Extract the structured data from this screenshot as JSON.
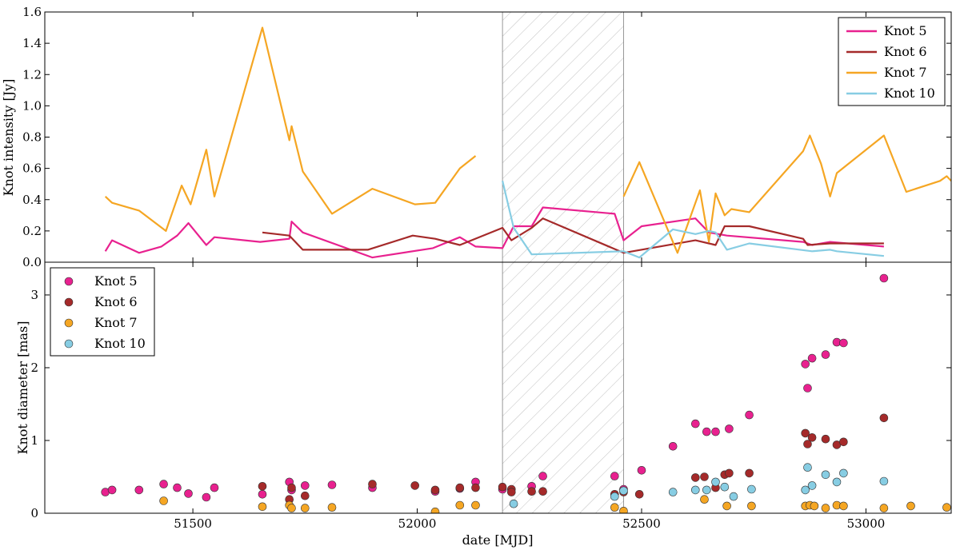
{
  "chart_data": [
    {
      "type": "line",
      "panel": "top",
      "title": "",
      "xlabel": "",
      "ylabel": "Knot intensity [Jy]",
      "xlim": [
        51170,
        53190
      ],
      "ylim": [
        0.0,
        1.6
      ],
      "yticks": [
        "0.0",
        "0.2",
        "0.4",
        "0.6",
        "0.8",
        "1.0",
        "1.2",
        "1.4",
        "1.6"
      ],
      "ytick_values": [
        0.0,
        0.2,
        0.4,
        0.6,
        0.8,
        1.0,
        1.2,
        1.4,
        1.6
      ],
      "legend_position": "top-right",
      "series": [
        {
          "name": "Knot 5",
          "color": "#e8218f",
          "segments": [
            [
              [
                51305,
                0.07
              ],
              [
                51320,
                0.14
              ],
              [
                51380,
                0.06
              ],
              [
                51430,
                0.1
              ],
              [
                51465,
                0.17
              ],
              [
                51490,
                0.25
              ],
              [
                51530,
                0.11
              ],
              [
                51548,
                0.16
              ],
              [
                51650,
                0.13
              ],
              [
                51715,
                0.15
              ],
              [
                51720,
                0.26
              ],
              [
                51745,
                0.19
              ],
              [
                51900,
                0.03
              ],
              [
                52035,
                0.09
              ],
              [
                52095,
                0.16
              ],
              [
                52130,
                0.1
              ],
              [
                52190,
                0.09
              ],
              [
                52215,
                0.23
              ],
              [
                52255,
                0.23
              ],
              [
                52280,
                0.35
              ],
              [
                52440,
                0.31
              ],
              [
                52460,
                0.14
              ],
              [
                52500,
                0.23
              ],
              [
                52620,
                0.28
              ],
              [
                52650,
                0.19
              ],
              [
                52690,
                0.17
              ],
              [
                52860,
                0.13
              ],
              [
                52880,
                0.11
              ],
              [
                52920,
                0.13
              ],
              [
                53040,
                0.1
              ]
            ]
          ]
        },
        {
          "name": "Knot 6",
          "color": "#a52a2a",
          "segments": [
            [
              [
                51655,
                0.19
              ],
              [
                51715,
                0.17
              ],
              [
                51745,
                0.08
              ],
              [
                51890,
                0.08
              ],
              [
                51990,
                0.17
              ],
              [
                52040,
                0.15
              ],
              [
                52095,
                0.11
              ],
              [
                52190,
                0.22
              ],
              [
                52210,
                0.14
              ],
              [
                52255,
                0.22
              ],
              [
                52280,
                0.28
              ],
              [
                52460,
                0.06
              ],
              [
                52620,
                0.14
              ],
              [
                52650,
                0.12
              ],
              [
                52665,
                0.11
              ],
              [
                52685,
                0.23
              ],
              [
                52740,
                0.23
              ],
              [
                52860,
                0.15
              ],
              [
                52870,
                0.11
              ],
              [
                52920,
                0.12
              ],
              [
                53040,
                0.12
              ]
            ]
          ]
        },
        {
          "name": "Knot 7",
          "color": "#f5a623",
          "segments": [
            [
              [
                51305,
                0.42
              ],
              [
                51320,
                0.38
              ],
              [
                51380,
                0.33
              ],
              [
                51440,
                0.2
              ],
              [
                51475,
                0.49
              ],
              [
                51495,
                0.37
              ],
              [
                51530,
                0.72
              ],
              [
                51548,
                0.42
              ],
              [
                51655,
                1.5
              ],
              [
                51715,
                0.78
              ],
              [
                51720,
                0.87
              ],
              [
                51745,
                0.58
              ],
              [
                51810,
                0.31
              ],
              [
                51900,
                0.47
              ],
              [
                51995,
                0.37
              ],
              [
                52040,
                0.38
              ],
              [
                52095,
                0.6
              ],
              [
                52130,
                0.68
              ]
            ],
            [
              [
                52460,
                0.42
              ],
              [
                52495,
                0.64
              ],
              [
                52580,
                0.06
              ],
              [
                52630,
                0.46
              ],
              [
                52650,
                0.13
              ],
              [
                52665,
                0.44
              ],
              [
                52685,
                0.3
              ],
              [
                52700,
                0.34
              ],
              [
                52740,
                0.32
              ],
              [
                52860,
                0.71
              ],
              [
                52875,
                0.81
              ],
              [
                52900,
                0.63
              ],
              [
                52920,
                0.42
              ],
              [
                52935,
                0.57
              ],
              [
                53040,
                0.81
              ],
              [
                53090,
                0.45
              ],
              [
                53165,
                0.52
              ],
              [
                53180,
                0.55
              ],
              [
                53190,
                0.52
              ]
            ]
          ]
        },
        {
          "name": "Knot 10",
          "color": "#87cde3",
          "segments": [
            [
              [
                52190,
                0.52
              ],
              [
                52215,
                0.22
              ],
              [
                52255,
                0.05
              ],
              [
                52460,
                0.07
              ],
              [
                52495,
                0.03
              ],
              [
                52570,
                0.21
              ],
              [
                52620,
                0.18
              ],
              [
                52650,
                0.2
              ],
              [
                52665,
                0.19
              ],
              [
                52690,
                0.08
              ],
              [
                52740,
                0.12
              ],
              [
                52880,
                0.07
              ],
              [
                52920,
                0.08
              ],
              [
                52935,
                0.07
              ],
              [
                53040,
                0.04
              ]
            ]
          ]
        }
      ]
    },
    {
      "type": "scatter",
      "panel": "bottom",
      "title": "",
      "xlabel": "date [MJD]",
      "ylabel": "Knot diameter [mas]",
      "xlim": [
        51170,
        53190
      ],
      "ylim": [
        0,
        3.45
      ],
      "yticks": [
        "0",
        "1",
        "2",
        "3"
      ],
      "ytick_values": [
        0,
        1,
        2,
        3
      ],
      "xticks": [
        "51500",
        "52000",
        "52500",
        "53000"
      ],
      "xtick_values": [
        51500,
        52000,
        52500,
        53000
      ],
      "legend_position": "top-left",
      "series": [
        {
          "name": "Knot 5",
          "color": "#e8218f",
          "points": [
            [
              51305,
              0.29
            ],
            [
              51320,
              0.32
            ],
            [
              51380,
              0.32
            ],
            [
              51435,
              0.4
            ],
            [
              51465,
              0.35
            ],
            [
              51490,
              0.27
            ],
            [
              51530,
              0.22
            ],
            [
              51548,
              0.35
            ],
            [
              51655,
              0.26
            ],
            [
              51715,
              0.43
            ],
            [
              51720,
              0.32
            ],
            [
              51750,
              0.38
            ],
            [
              51810,
              0.39
            ],
            [
              51900,
              0.35
            ],
            [
              52040,
              0.3
            ],
            [
              52095,
              0.34
            ],
            [
              52130,
              0.43
            ],
            [
              52190,
              0.33
            ],
            [
              52255,
              0.37
            ],
            [
              52280,
              0.51
            ],
            [
              52440,
              0.51
            ],
            [
              52460,
              0.33
            ],
            [
              52500,
              0.59
            ],
            [
              52570,
              0.92
            ],
            [
              52620,
              1.23
            ],
            [
              52645,
              1.12
            ],
            [
              52665,
              1.12
            ],
            [
              52695,
              1.16
            ],
            [
              52740,
              1.35
            ],
            [
              52865,
              2.05
            ],
            [
              52870,
              1.72
            ],
            [
              52880,
              2.13
            ],
            [
              52910,
              2.18
            ],
            [
              52935,
              2.35
            ],
            [
              52950,
              2.34
            ],
            [
              53040,
              3.23
            ]
          ]
        },
        {
          "name": "Knot 6",
          "color": "#a52a2a",
          "points": [
            [
              51655,
              0.37
            ],
            [
              51715,
              0.19
            ],
            [
              51720,
              0.35
            ],
            [
              51750,
              0.24
            ],
            [
              51900,
              0.4
            ],
            [
              51995,
              0.38
            ],
            [
              52040,
              0.32
            ],
            [
              52095,
              0.35
            ],
            [
              52130,
              0.35
            ],
            [
              52190,
              0.36
            ],
            [
              52210,
              0.33
            ],
            [
              52210,
              0.29
            ],
            [
              52255,
              0.3
            ],
            [
              52280,
              0.3
            ],
            [
              52440,
              0.26
            ],
            [
              52460,
              0.29
            ],
            [
              52495,
              0.26
            ],
            [
              52620,
              0.49
            ],
            [
              52640,
              0.5
            ],
            [
              52665,
              0.35
            ],
            [
              52685,
              0.53
            ],
            [
              52695,
              0.55
            ],
            [
              52740,
              0.55
            ],
            [
              52865,
              1.1
            ],
            [
              52870,
              0.95
            ],
            [
              52880,
              1.04
            ],
            [
              52910,
              1.02
            ],
            [
              52935,
              0.94
            ],
            [
              52950,
              0.98
            ],
            [
              53040,
              1.31
            ]
          ]
        },
        {
          "name": "Knot 7",
          "color": "#f5a623",
          "points": [
            [
              51435,
              0.17
            ],
            [
              51655,
              0.09
            ],
            [
              51715,
              0.11
            ],
            [
              51720,
              0.07
            ],
            [
              51750,
              0.07
            ],
            [
              51810,
              0.08
            ],
            [
              52040,
              0.02
            ],
            [
              52095,
              0.11
            ],
            [
              52130,
              0.11
            ],
            [
              52440,
              0.08
            ],
            [
              52460,
              0.03
            ],
            [
              52640,
              0.19
            ],
            [
              52690,
              0.1
            ],
            [
              52745,
              0.1
            ],
            [
              52865,
              0.1
            ],
            [
              52875,
              0.11
            ],
            [
              52885,
              0.1
            ],
            [
              52910,
              0.07
            ],
            [
              52935,
              0.11
            ],
            [
              52950,
              0.1
            ],
            [
              53040,
              0.07
            ],
            [
              53100,
              0.1
            ],
            [
              53180,
              0.08
            ]
          ]
        },
        {
          "name": "Knot 10",
          "color": "#87cde3",
          "points": [
            [
              52215,
              0.13
            ],
            [
              52440,
              0.23
            ],
            [
              52460,
              0.31
            ],
            [
              52570,
              0.29
            ],
            [
              52620,
              0.32
            ],
            [
              52645,
              0.32
            ],
            [
              52665,
              0.43
            ],
            [
              52685,
              0.36
            ],
            [
              52705,
              0.23
            ],
            [
              52745,
              0.33
            ],
            [
              52865,
              0.32
            ],
            [
              52870,
              0.63
            ],
            [
              52880,
              0.38
            ],
            [
              52910,
              0.53
            ],
            [
              52935,
              0.43
            ],
            [
              52950,
              0.55
            ],
            [
              53040,
              0.44
            ]
          ]
        }
      ]
    }
  ],
  "shaded_region": {
    "x_start": 52190,
    "x_end": 52460,
    "pattern": "hatched"
  }
}
